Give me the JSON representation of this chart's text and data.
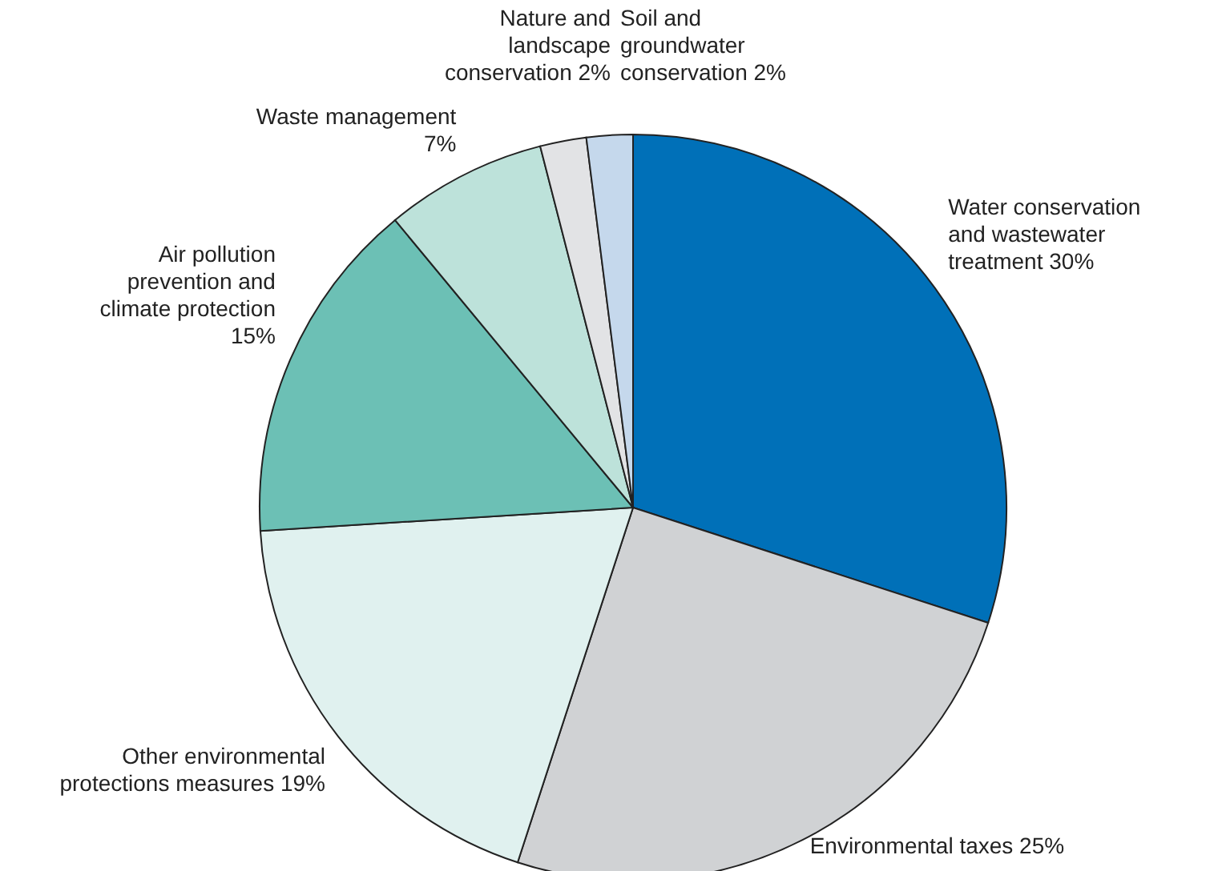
{
  "chart_data": {
    "type": "pie",
    "categories": [
      "Water conservation and wastewater treatment",
      "Environmental taxes",
      "Other environmental protections measures",
      "Air pollution prevention and climate protection",
      "Waste management",
      "Nature and landscape conservation",
      "Soil and groundwater conservation"
    ],
    "values": [
      30,
      25,
      19,
      15,
      7,
      2,
      2
    ],
    "value_labels": [
      "30%",
      "25%",
      "19%",
      "15%",
      "7%",
      "2%",
      "2%"
    ],
    "colors": [
      "#0070b8",
      "#d0d2d4",
      "#e0f1ef",
      "#6cc0b5",
      "#bde2da",
      "#e2e3e5",
      "#c5d8ec"
    ]
  }
}
